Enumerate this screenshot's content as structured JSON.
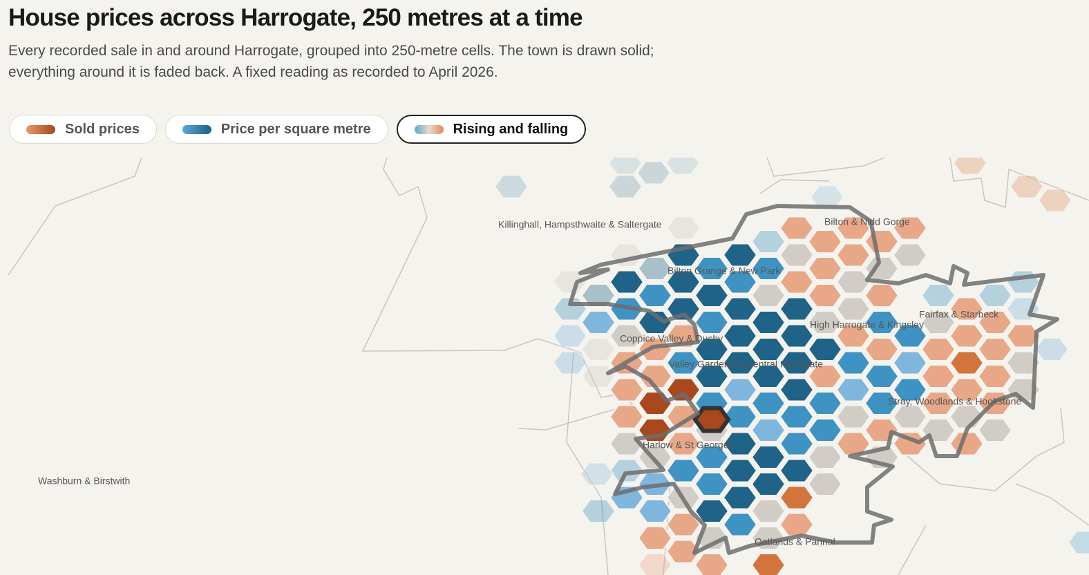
{
  "header": {
    "title": "House prices across Harrogate, 250 metres at a time",
    "subtitle": "Every recorded sale in and around Harrogate, grouped into 250-metre cells. The town is drawn solid; everything around it is faded back. A fixed reading as recorded to April 2026."
  },
  "tabs": [
    {
      "label": "Sold prices",
      "selected": false
    },
    {
      "label": "Price per square metre",
      "selected": false
    },
    {
      "label": "Rising and falling",
      "selected": true
    }
  ],
  "map": {
    "places": [
      "Killinghall, Hampsthwaite & Saltergate",
      "Bilton & Nidd Gorge",
      "Bilton Grange & New Park",
      "Fairfax & Starbeck",
      "High Harrogate & Kingsley",
      "Coppice Valley & Duchy",
      "Valley Gardens & Central Harrogate",
      "Stray, Woodlands & Hookstone",
      "Harlow & St Georges",
      "Washburn & Birstwith",
      "Oatlands & Pannal"
    ]
  }
}
